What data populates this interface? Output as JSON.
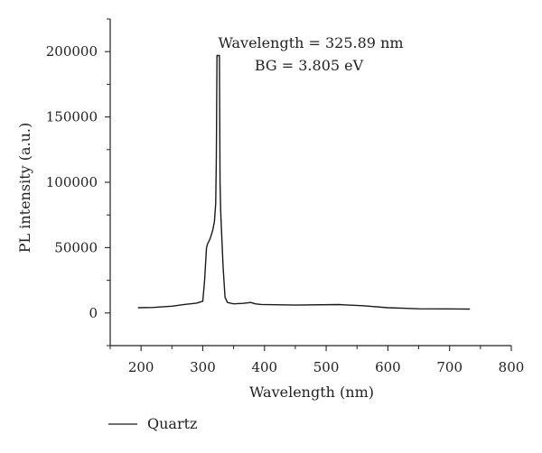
{
  "chart_data": {
    "type": "line",
    "xlabel": "Wavelength (nm)",
    "ylabel": "PL intensity (a.u.)",
    "xlim": [
      150,
      800
    ],
    "ylim": [
      -25000,
      225000
    ],
    "x_ticks": [
      200,
      300,
      400,
      500,
      600,
      700,
      800
    ],
    "y_ticks": [
      0,
      50000,
      100000,
      150000,
      200000
    ],
    "grid": false,
    "legend_position": "bottom-left",
    "annotations": [
      "Wavelength = 325.89 nm",
      "BG = 3.805 eV"
    ],
    "series": [
      {
        "name": "Quartz",
        "color": "#1a1a1a",
        "x": [
          195,
          220,
          250,
          270,
          290,
          300,
          303,
          306,
          308,
          312,
          316,
          319,
          321,
          322,
          323,
          324,
          325,
          326,
          327,
          328,
          329,
          331,
          333,
          336,
          340,
          350,
          365,
          378,
          385,
          395,
          450,
          520,
          560,
          600,
          630,
          650,
          700,
          733
        ],
        "y": [
          4000,
          4200,
          5200,
          6500,
          7500,
          9000,
          25000,
          50000,
          53000,
          57000,
          63000,
          70000,
          84000,
          120000,
          197000,
          197000,
          197000,
          197000,
          197000,
          100000,
          78000,
          57000,
          35000,
          12000,
          8000,
          7000,
          7300,
          8000,
          7000,
          6500,
          6000,
          6400,
          5500,
          4000,
          3500,
          3200,
          3100,
          3000
        ]
      }
    ]
  }
}
